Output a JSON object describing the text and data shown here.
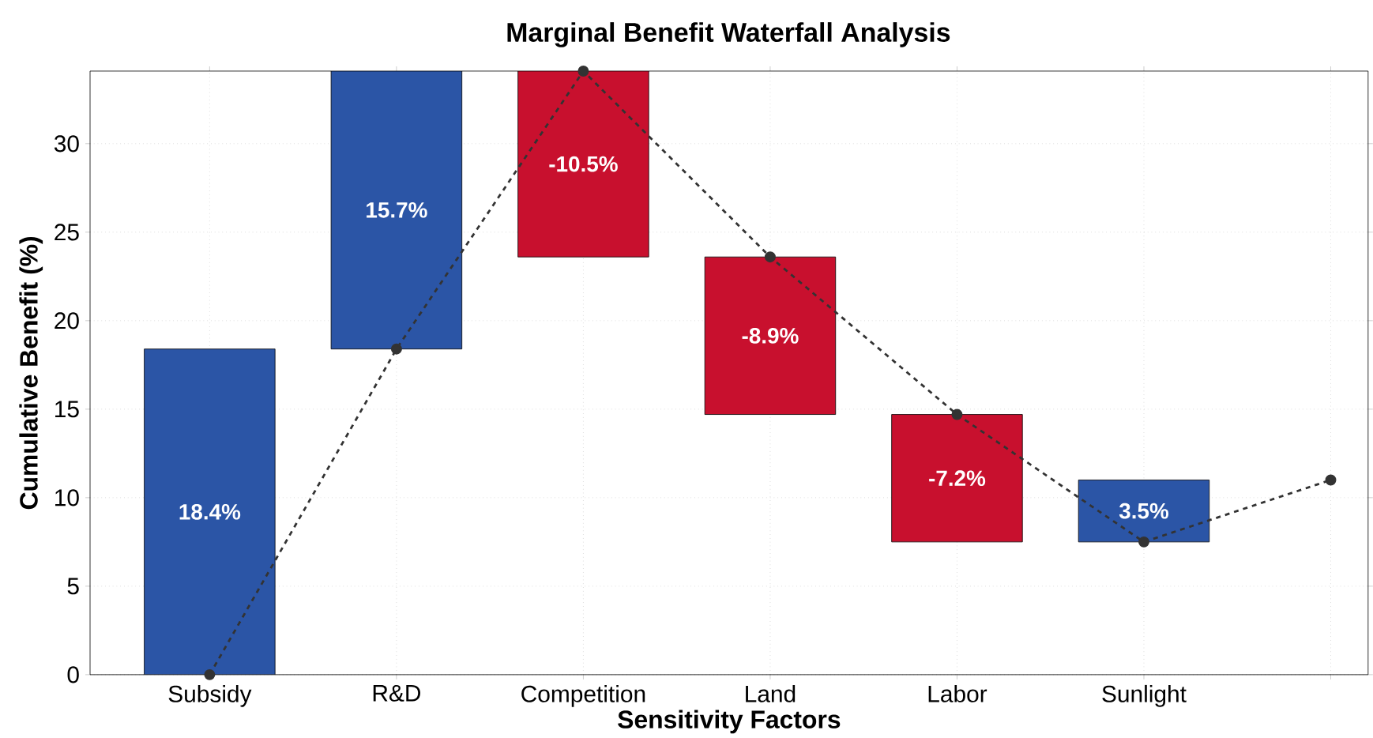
{
  "chart_data": {
    "type": "bar",
    "title": "Marginal Benefit Waterfall Analysis",
    "xlabel": "Sensitivity Factors",
    "ylabel": "Cumulative Benefit (%)",
    "categories": [
      "Subsidy",
      "R&D",
      "Competition",
      "Land",
      "Labor",
      "Sunlight",
      null
    ],
    "ylim": [
      0,
      34.1
    ],
    "yticks": [
      0,
      5,
      10,
      15,
      20,
      25,
      30
    ],
    "grid": true,
    "series": [
      {
        "values": [
          18.4,
          15.7,
          -10.5,
          -8.9,
          -7.2,
          3.5,
          null
        ],
        "base": [
          0,
          18.4,
          34.1,
          23.6,
          14.7,
          7.5,
          null
        ],
        "colors": [
          "#2b55a6",
          "#2b55a6",
          "#c8102e",
          "#c8102e",
          "#c8102e",
          "#2b55a6",
          null
        ],
        "value_labels": [
          "18.4%",
          "15.7%",
          "-10.5%",
          "-8.9%",
          "-7.2%",
          "3.5%",
          null
        ]
      },
      {
        "type": "line",
        "values": [
          0,
          18.4,
          34.1,
          23.6,
          14.7,
          7.5,
          11.0
        ],
        "color": "#333333",
        "marker": "circle",
        "line_style": "dashed"
      }
    ]
  }
}
